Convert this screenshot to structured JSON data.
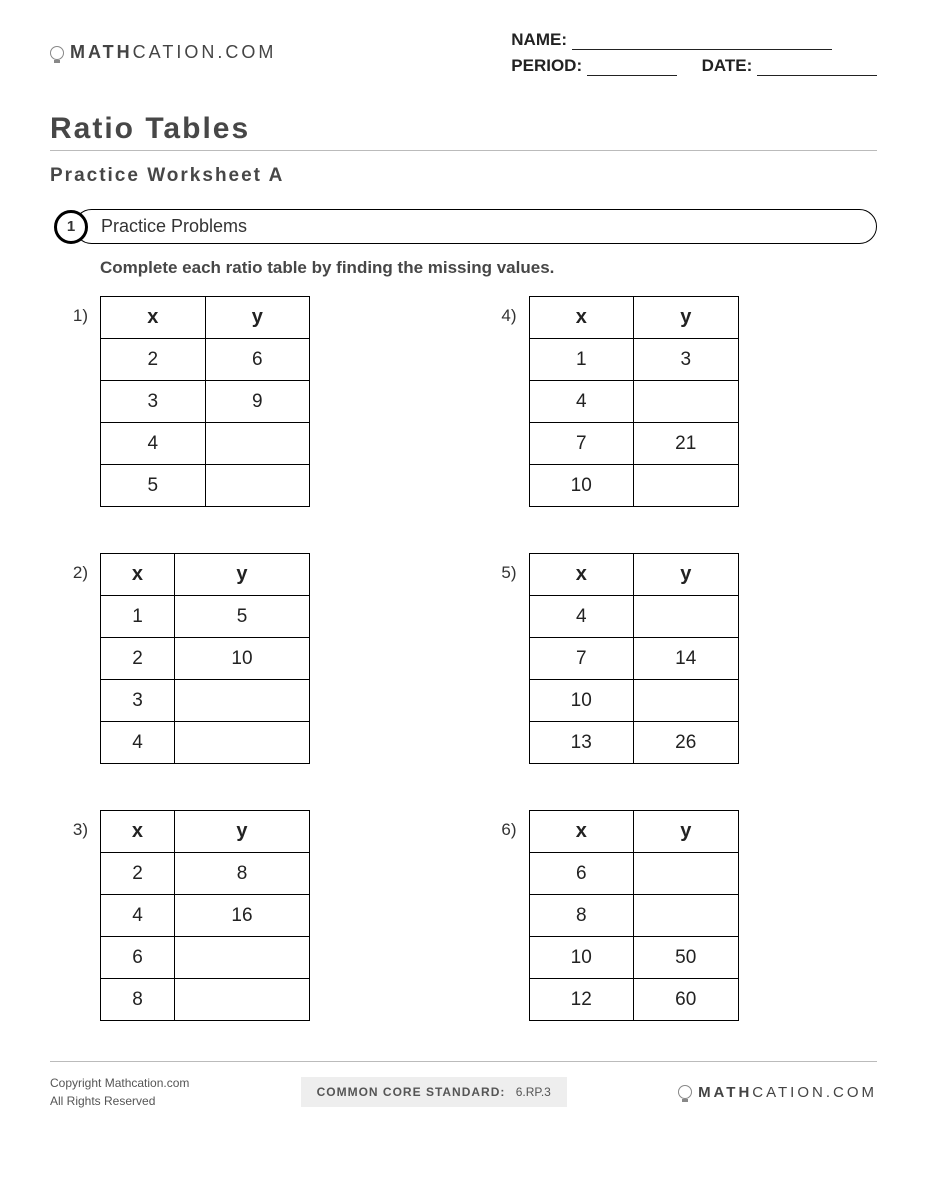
{
  "brand": {
    "bold": "MATH",
    "light": "CATION.COM"
  },
  "fields": {
    "name": "NAME:",
    "period": "PERIOD:",
    "date": "DATE:"
  },
  "title": "Ratio Tables",
  "subtitle": "Practice Worksheet A",
  "section": {
    "num": "1",
    "label": "Practice Problems"
  },
  "instructions": "Complete each ratio table by finding the missing values.",
  "headers": {
    "x": "x",
    "y": "y"
  },
  "problems": [
    {
      "n": "1)",
      "rows": [
        [
          "2",
          "6"
        ],
        [
          "3",
          "9"
        ],
        [
          "4",
          ""
        ],
        [
          "5",
          ""
        ]
      ]
    },
    {
      "n": "4)",
      "rows": [
        [
          "1",
          "3"
        ],
        [
          "4",
          ""
        ],
        [
          "7",
          "21"
        ],
        [
          "10",
          ""
        ]
      ]
    },
    {
      "n": "2)",
      "rows": [
        [
          "1",
          "5"
        ],
        [
          "2",
          "10"
        ],
        [
          "3",
          ""
        ],
        [
          "4",
          ""
        ]
      ]
    },
    {
      "n": "5)",
      "rows": [
        [
          "4",
          ""
        ],
        [
          "7",
          "14"
        ],
        [
          "10",
          ""
        ],
        [
          "13",
          "26"
        ]
      ]
    },
    {
      "n": "3)",
      "rows": [
        [
          "2",
          "8"
        ],
        [
          "4",
          "16"
        ],
        [
          "6",
          ""
        ],
        [
          "8",
          ""
        ]
      ]
    },
    {
      "n": "6)",
      "rows": [
        [
          "6",
          ""
        ],
        [
          "8",
          ""
        ],
        [
          "10",
          "50"
        ],
        [
          "12",
          "60"
        ]
      ]
    }
  ],
  "footer": {
    "copy1": "Copyright Mathcation.com",
    "copy2": "All Rights Reserved",
    "ccs_label": "COMMON CORE STANDARD:",
    "ccs_value": "6.RP.3"
  }
}
